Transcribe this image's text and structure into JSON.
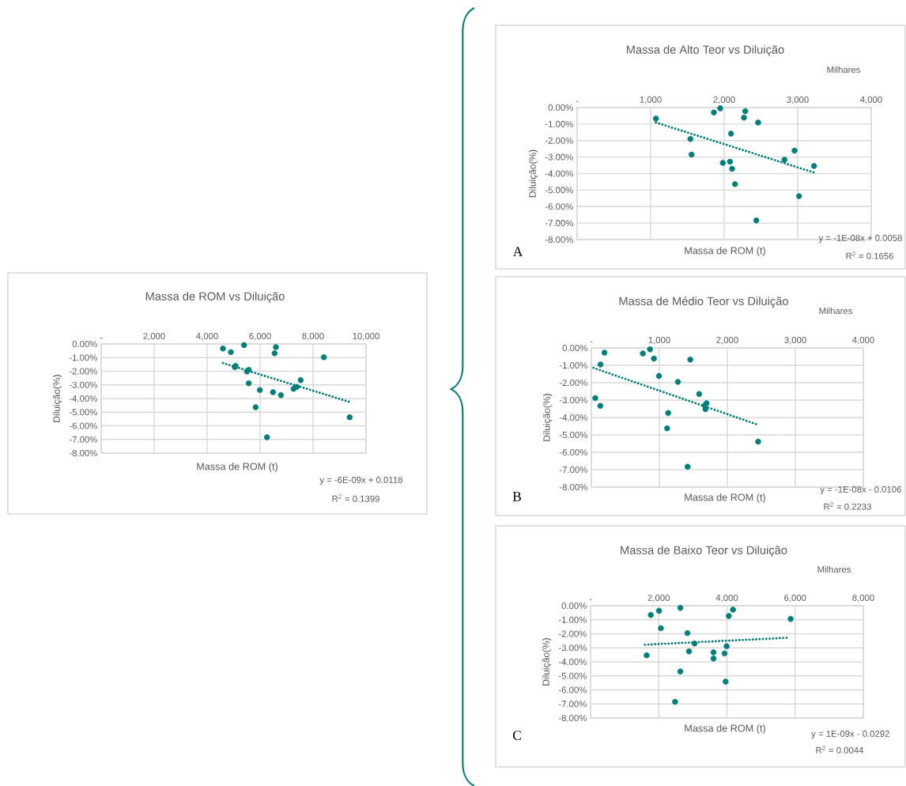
{
  "chart_data": [
    {
      "type": "scatter",
      "title": "Massa de ROM vs Diluição",
      "xlabel": "Massa de ROM (t)",
      "ylabel": "Diluição(%)",
      "grid": true,
      "xlim": [
        0,
        10000
      ],
      "xticks": [
        {
          "value": 0,
          "label": "-"
        },
        {
          "value": 2000,
          "label": "2,000"
        },
        {
          "value": 4000,
          "label": "4,000"
        },
        {
          "value": 6000,
          "label": "6,000"
        },
        {
          "value": 8000,
          "label": "8,000"
        },
        {
          "value": 10000,
          "label": "10,000"
        }
      ],
      "ylim": [
        -8,
        0
      ],
      "yticks": [
        {
          "value": 0,
          "label": "0.00%"
        },
        {
          "value": -1,
          "label": "-1.00%"
        },
        {
          "value": -2,
          "label": "-2.00%"
        },
        {
          "value": -3,
          "label": "-3.00%"
        },
        {
          "value": -4,
          "label": "-4.00%"
        },
        {
          "value": -5,
          "label": "-5.00%"
        },
        {
          "value": -6,
          "label": "-6.00%"
        },
        {
          "value": -7,
          "label": "-7.00%"
        },
        {
          "value": -8,
          "label": "-8.00%"
        }
      ],
      "series": [
        {
          "marker": "circle",
          "color": "#007f7a",
          "x": [
            4597,
            4896,
            5393,
            6597,
            6547,
            8408,
            5075,
            5045,
            5572,
            5502,
            5572,
            7532,
            5990,
            6488,
            6786,
            7264,
            7383,
            5831,
            9383,
            6259
          ],
          "values": [
            -0.33,
            -0.6,
            -0.08,
            -0.23,
            -0.68,
            -0.97,
            -1.6,
            -1.7,
            -1.89,
            -2.01,
            -2.88,
            -2.65,
            -3.38,
            -3.54,
            -3.75,
            -3.29,
            -3.15,
            -4.64,
            -5.37,
            -6.84
          ]
        },
        {
          "type": "line",
          "line_style": "dotted",
          "color": "#007f7a",
          "x": [
            4597,
            9383
          ],
          "values": [
            -1.4,
            -4.25
          ]
        }
      ],
      "annotations": [
        "y = -6E-09x + 0.0118",
        "R$^{2}$ = 0.1399"
      ]
    },
    {
      "type": "scatter",
      "title": "Massa de Alto Teor vs Diluição",
      "xlabel": "Massa de ROM (t)",
      "ylabel": "Diluição(%)",
      "grid": true,
      "xlim": [
        0,
        4000
      ],
      "xticks": [
        {
          "value": 0,
          "label": "-"
        },
        {
          "value": 1000,
          "label": "1,000"
        },
        {
          "value": 2000,
          "label": "2,000"
        },
        {
          "value": 3000,
          "label": "3,000"
        },
        {
          "value": 4000,
          "label": "4,000"
        }
      ],
      "ylim": [
        -8,
        0
      ],
      "yticks": [
        {
          "value": 0,
          "label": "0.00%"
        },
        {
          "value": -1,
          "label": "-1.00%"
        },
        {
          "value": -2,
          "label": "-2.00%"
        },
        {
          "value": -3,
          "label": "-3.00%"
        },
        {
          "value": -4,
          "label": "-4.00%"
        },
        {
          "value": -5,
          "label": "-5.00%"
        },
        {
          "value": -6,
          "label": "-6.00%"
        },
        {
          "value": -7,
          "label": "-7.00%"
        },
        {
          "value": -8,
          "label": "-8.00%"
        }
      ],
      "series": [
        {
          "marker": "circle",
          "color": "#007f7a",
          "x": [
            1072,
            1860,
            1946,
            2287,
            2269,
            2462,
            2093,
            1541,
            1556,
            2957,
            2821,
            1982,
            2079,
            2108,
            3222,
            2147,
            3018,
            2437
          ],
          "values": [
            -0.67,
            -0.3,
            -0.05,
            -0.22,
            -0.61,
            -0.91,
            -1.58,
            -1.9,
            -2.85,
            -2.61,
            -3.16,
            -3.35,
            -3.28,
            -3.71,
            -3.54,
            -4.64,
            -5.37,
            -6.84
          ]
        },
        {
          "type": "line",
          "line_style": "dotted",
          "color": "#007f7a",
          "x": [
            1072,
            3222
          ],
          "values": [
            -0.91,
            -3.94
          ]
        }
      ],
      "annotations": [
        "y = -1E-08x + 0.0058",
        "R$^{2}$ = 0.1656",
        "Milhares",
        "A"
      ]
    },
    {
      "type": "scatter",
      "title": "Massa de Médio Teor vs Diluição",
      "xlabel": "Massa de ROM (t)",
      "ylabel": "Diluição(%)",
      "grid": true,
      "xlim": [
        0,
        4000
      ],
      "xticks": [
        {
          "value": 0,
          "label": "-"
        },
        {
          "value": 1000,
          "label": "1,000"
        },
        {
          "value": 2000,
          "label": "2,000"
        },
        {
          "value": 3000,
          "label": "3,000"
        },
        {
          "value": 4000,
          "label": "4,000"
        }
      ],
      "ylim": [
        -8,
        0
      ],
      "yticks": [
        {
          "value": 0,
          "label": "0.00%"
        },
        {
          "value": -1,
          "label": "-1.00%"
        },
        {
          "value": -2,
          "label": "-2.00%"
        },
        {
          "value": -3,
          "label": "-3.00%"
        },
        {
          "value": -4,
          "label": "-4.00%"
        },
        {
          "value": -5,
          "label": "-5.00%"
        },
        {
          "value": -6,
          "label": "-6.00%"
        },
        {
          "value": -7,
          "label": "-7.00%"
        },
        {
          "value": -8,
          "label": "-8.00%"
        }
      ],
      "series": [
        {
          "marker": "circle",
          "color": "#007f7a",
          "x": [
            193,
            135,
            58,
            132,
            758,
            863,
            921,
            1455,
            994,
            1273,
            1586,
            1694,
            1667,
            1679,
            1130,
            1114,
            2453,
            1416
          ],
          "values": [
            -0.27,
            -0.95,
            -2.88,
            -3.33,
            -0.32,
            -0.08,
            -0.61,
            -0.67,
            -1.61,
            -1.95,
            -2.65,
            -3.18,
            -3.3,
            -3.52,
            -3.74,
            -4.62,
            -5.39,
            -6.83
          ]
        },
        {
          "type": "line",
          "line_style": "dotted",
          "color": "#007f7a",
          "x": [
            31,
            2429
          ],
          "values": [
            -1.15,
            -4.39
          ]
        }
      ],
      "annotations": [
        "y = -1E-08x - 0.0106",
        "R$^{2}$ = 0.2233",
        "Milhares",
        "B"
      ]
    },
    {
      "type": "scatter",
      "title": "Massa de Baixo Teor vs Diluição",
      "xlabel": "Massa de ROM (t)",
      "ylabel": "Diluição(%)",
      "grid": true,
      "xlim": [
        0,
        8000
      ],
      "xticks": [
        {
          "value": 0,
          "label": "-"
        },
        {
          "value": 2000,
          "label": "2,000"
        },
        {
          "value": 4000,
          "label": "4,000"
        },
        {
          "value": 6000,
          "label": "6,000"
        },
        {
          "value": 8000,
          "label": "8,000"
        }
      ],
      "ylim": [
        -8,
        0
      ],
      "yticks": [
        {
          "value": 0,
          "label": "0.00%"
        },
        {
          "value": -1,
          "label": "-1.00%"
        },
        {
          "value": -2,
          "label": "-2.00%"
        },
        {
          "value": -3,
          "label": "-3.00%"
        },
        {
          "value": -4,
          "label": "-4.00%"
        },
        {
          "value": -5,
          "label": "-5.00%"
        },
        {
          "value": -6,
          "label": "-6.00%"
        },
        {
          "value": -7,
          "label": "-7.00%"
        },
        {
          "value": -8,
          "label": "-8.00%"
        }
      ],
      "series": [
        {
          "marker": "circle",
          "color": "#007f7a",
          "x": [
            1768,
            2008,
            2633,
            4178,
            4054,
            5869,
            2062,
            2842,
            3050,
            3992,
            2888,
            3606,
            3931,
            1645,
            3606,
            2633,
            3961,
            2479
          ],
          "values": [
            -0.66,
            -0.36,
            -0.15,
            -0.28,
            -0.73,
            -0.94,
            -1.6,
            -1.95,
            -2.69,
            -2.89,
            -3.25,
            -3.32,
            -3.4,
            -3.53,
            -3.76,
            -4.69,
            -5.41,
            -6.85
          ]
        },
        {
          "type": "line",
          "line_style": "dotted",
          "color": "#007f7a",
          "x": [
            1598,
            5753
          ],
          "values": [
            -2.78,
            -2.29
          ]
        }
      ],
      "annotations": [
        "y = 1E-09x - 0.0292",
        "R$^{2}$ = 0.0044",
        "Milhares",
        "C"
      ]
    }
  ]
}
